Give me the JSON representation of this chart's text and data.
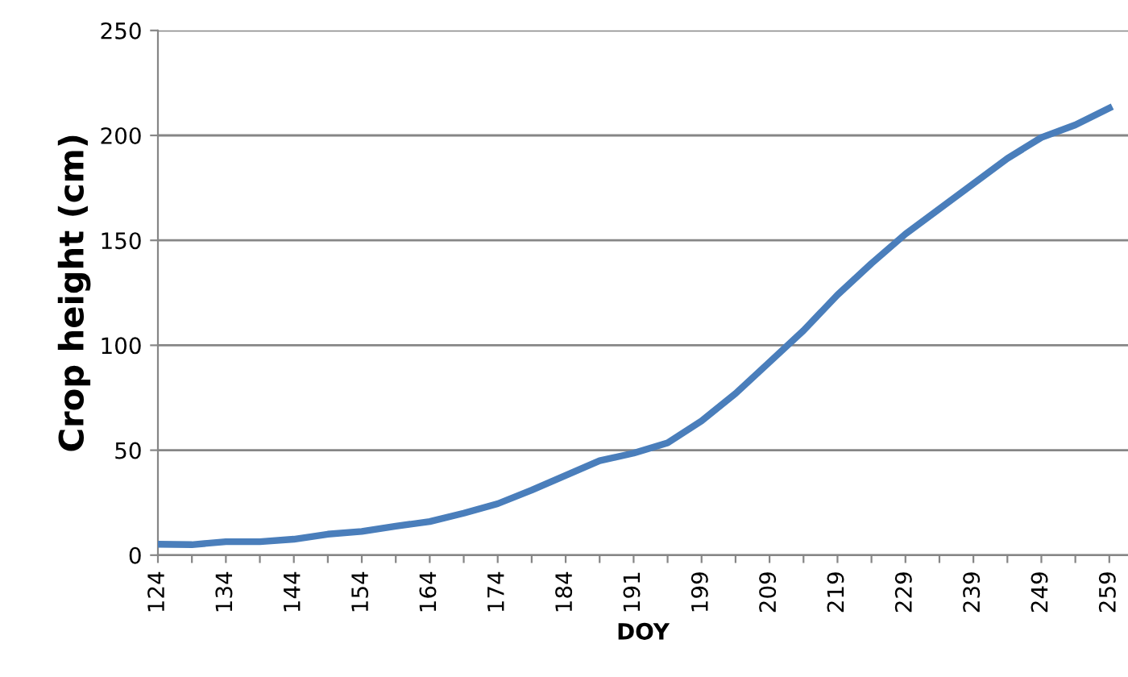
{
  "chart_data": {
    "type": "line",
    "xlabel": "DOY",
    "ylabel": "Crop height (cm)",
    "categories": [
      "124",
      null,
      "134",
      null,
      "144",
      null,
      "154",
      null,
      "164",
      null,
      "174",
      null,
      "184",
      null,
      "191",
      null,
      "199",
      null,
      "209",
      null,
      "219",
      null,
      "229",
      null,
      "239",
      null,
      "249",
      null,
      "259"
    ],
    "series": [
      {
        "color": "#4a7ebb",
        "values": [
          5.2,
          5,
          6.4,
          6.4,
          7.6,
          10,
          11.3,
          13.8,
          16,
          20,
          24.5,
          31,
          38,
          45,
          48.6,
          53.5,
          64,
          77,
          92,
          107,
          124,
          139,
          153,
          165,
          177,
          189,
          199,
          205,
          213
        ]
      }
    ],
    "ylim": [
      0,
      250
    ],
    "yticks": [
      0,
      50,
      100,
      150,
      200,
      250
    ],
    "grid": "y",
    "marker": "none",
    "line_style": "solid"
  }
}
